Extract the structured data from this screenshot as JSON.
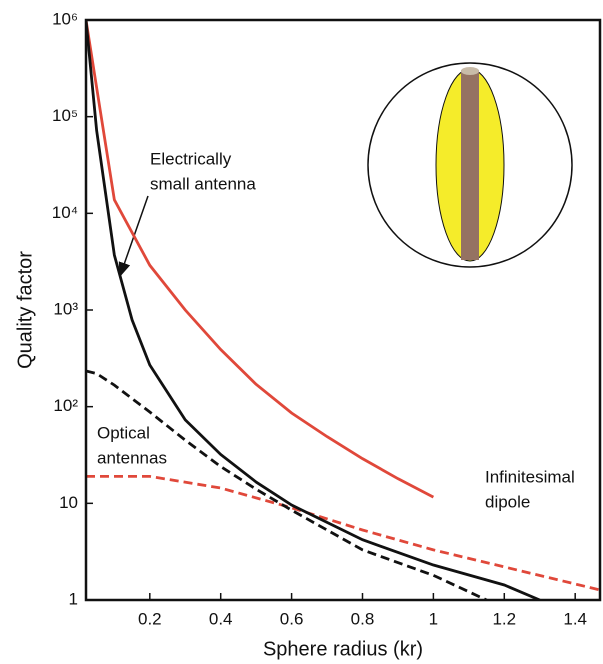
{
  "chart_data": {
    "type": "line",
    "xlabel": "Sphere radius (kr)",
    "ylabel": "Quality factor",
    "xlim": [
      0.02,
      1.47
    ],
    "ylim": [
      1,
      1000000
    ],
    "log_y": true,
    "xticks": [
      0.2,
      0.4,
      0.6,
      0.8,
      1.0,
      1.2,
      1.4
    ],
    "yticks": [
      1,
      10,
      {
        "value": 100,
        "label": "10²"
      },
      {
        "value": 1000,
        "label": "10³"
      },
      {
        "value": 10000,
        "label": "10⁴"
      },
      {
        "value": 100000,
        "label": "10⁵"
      },
      {
        "value": 1000000,
        "label": "10⁶"
      }
    ],
    "series": [
      {
        "color": "#e0483a",
        "dashed": false,
        "x": [
          0.02,
          0.06,
          0.1,
          0.2,
          0.3,
          0.4,
          0.5,
          0.6,
          0.7,
          0.8,
          0.9,
          1.0
        ],
        "values": [
          1000000,
          117000,
          13800,
          2900,
          1000,
          390,
          170,
          86,
          49,
          29,
          18,
          11.6
        ]
      },
      {
        "color": "#e0483a",
        "dashed": true,
        "x": [
          0.02,
          0.2,
          0.4,
          0.6,
          0.8,
          1.0,
          1.2,
          1.47
        ],
        "values": [
          19,
          19,
          14.4,
          9,
          5.3,
          3.3,
          2.2,
          1.27
        ]
      },
      {
        "color": "#111111",
        "dashed": false,
        "x": [
          0.02,
          0.05,
          0.1,
          0.15,
          0.2,
          0.3,
          0.4,
          0.5,
          0.6,
          0.8,
          1.0,
          1.2,
          1.3
        ],
        "values": [
          1000000,
          72000,
          3700,
          790,
          270,
          73,
          32,
          16.6,
          9.6,
          4.2,
          2.3,
          1.43,
          1
        ]
      },
      {
        "color": "#111111",
        "dashed": true,
        "x": [
          0.02,
          0.05,
          0.1,
          0.2,
          0.3,
          0.4,
          0.5,
          0.6,
          0.8,
          1.0,
          1.15
        ],
        "values": [
          234,
          220,
          167,
          88,
          45,
          24,
          14,
          8.5,
          3.3,
          1.8,
          1
        ]
      }
    ],
    "annotations": [
      {
        "lines": [
          "Electrically",
          "small antenna"
        ]
      },
      {
        "lines": [
          "Optical",
          "antennas"
        ]
      },
      {
        "lines": [
          "Infinitesimal",
          "dipole"
        ]
      }
    ]
  }
}
